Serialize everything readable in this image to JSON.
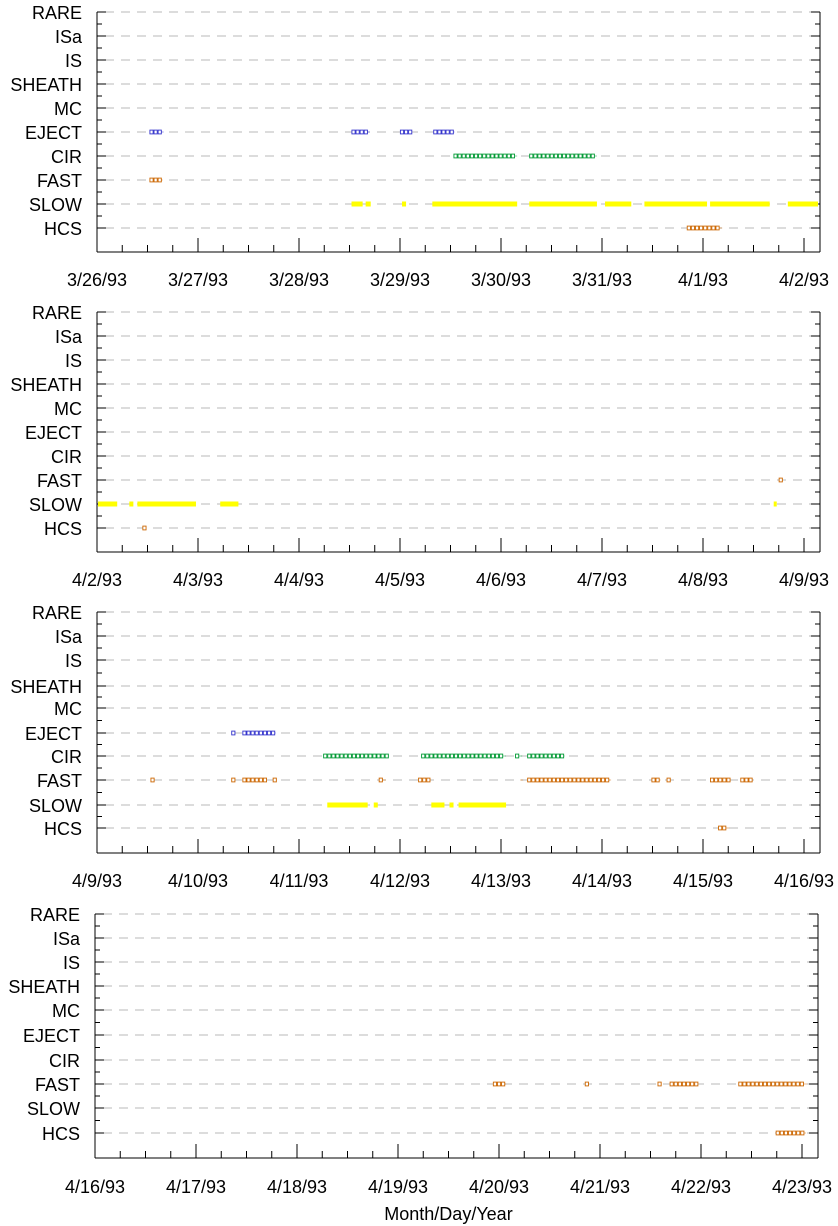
{
  "chart_data": [
    {
      "type": "scatter",
      "categories": [
        "RARE",
        "ISa",
        "IS",
        "SHEATH",
        "MC",
        "EJECT",
        "CIR",
        "FAST",
        "SLOW",
        "HCS"
      ],
      "x_ticks": [
        "3/26/93",
        "3/27/93",
        "3/28/93",
        "3/29/93",
        "3/30/93",
        "3/31/93",
        "4/1/93",
        "4/2/93"
      ],
      "xlim": [
        0,
        7
      ],
      "xlabel": "",
      "ylabel": "",
      "grid": true,
      "series": [
        {
          "category": "EJECT",
          "color": "#3333cc",
          "style": "hollow",
          "intervals": [
            [
              0.52,
              0.66
            ],
            [
              2.52,
              2.7
            ],
            [
              3.0,
              3.12
            ],
            [
              3.33,
              3.54
            ]
          ]
        },
        {
          "category": "CIR",
          "color": "#009933",
          "style": "hollow",
          "intervals": [
            [
              3.53,
              4.16
            ],
            [
              4.28,
              4.95
            ]
          ]
        },
        {
          "category": "FAST",
          "color": "#cc6600",
          "style": "hollow",
          "intervals": [
            [
              0.52,
              0.65
            ]
          ]
        },
        {
          "category": "SLOW",
          "color": "#ffff00",
          "style": "solid",
          "intervals": [
            [
              2.52,
              2.63
            ],
            [
              2.66,
              2.71
            ],
            [
              3.02,
              3.06
            ],
            [
              3.32,
              4.16
            ],
            [
              4.28,
              4.95
            ],
            [
              5.03,
              5.29
            ],
            [
              5.42,
              6.04
            ],
            [
              6.07,
              6.66
            ],
            [
              6.84,
              7.15
            ]
          ]
        },
        {
          "category": "HCS",
          "color": "#cc6600",
          "style": "hollow",
          "intervals": [
            [
              5.84,
              6.19
            ]
          ]
        }
      ]
    },
    {
      "type": "scatter",
      "categories": [
        "RARE",
        "ISa",
        "IS",
        "SHEATH",
        "MC",
        "EJECT",
        "CIR",
        "FAST",
        "SLOW",
        "HCS"
      ],
      "x_ticks": [
        "4/2/93",
        "4/3/93",
        "4/4/93",
        "4/5/93",
        "4/6/93",
        "4/7/93",
        "4/8/93",
        "4/9/93"
      ],
      "xlim": [
        0,
        7
      ],
      "xlabel": "",
      "ylabel": "",
      "grid": true,
      "series": [
        {
          "category": "FAST",
          "color": "#cc6600",
          "style": "hollow",
          "intervals": [
            [
              6.75,
              6.79
            ]
          ]
        },
        {
          "category": "SLOW",
          "color": "#ffff00",
          "style": "solid",
          "intervals": [
            [
              -0.05,
              0.2
            ],
            [
              0.32,
              0.36
            ],
            [
              0.4,
              0.98
            ],
            [
              1.22,
              1.4
            ],
            [
              6.7,
              6.73
            ]
          ]
        },
        {
          "category": "HCS",
          "color": "#cc6600",
          "style": "hollow",
          "intervals": [
            [
              0.45,
              0.49
            ]
          ]
        }
      ]
    },
    {
      "type": "scatter",
      "categories": [
        "RARE",
        "ISa",
        "IS",
        "SHEATH",
        "MC",
        "EJECT",
        "CIR",
        "FAST",
        "SLOW",
        "HCS"
      ],
      "x_ticks": [
        "4/9/93",
        "4/10/93",
        "4/11/93",
        "4/12/93",
        "4/13/93",
        "4/14/93",
        "4/15/93",
        "4/16/93"
      ],
      "xlim": [
        0,
        7
      ],
      "xlabel": "",
      "ylabel": "",
      "grid": true,
      "series": [
        {
          "category": "EJECT",
          "color": "#3333cc",
          "style": "hollow",
          "intervals": [
            [
              1.33,
              1.37
            ],
            [
              1.44,
              1.77
            ]
          ]
        },
        {
          "category": "CIR",
          "color": "#009933",
          "style": "hollow",
          "intervals": [
            [
              2.24,
              2.89
            ],
            [
              3.21,
              4.05
            ],
            [
              4.14,
              4.21
            ],
            [
              4.26,
              4.63
            ]
          ]
        },
        {
          "category": "FAST",
          "color": "#cc6600",
          "style": "hollow",
          "intervals": [
            [
              0.53,
              0.57
            ],
            [
              1.33,
              1.37
            ],
            [
              1.44,
              1.68
            ],
            [
              1.74,
              1.78
            ],
            [
              2.79,
              2.86
            ],
            [
              3.18,
              3.3
            ],
            [
              4.19,
              4.22
            ],
            [
              4.26,
              5.09
            ],
            [
              5.49,
              5.58
            ],
            [
              5.64,
              5.68
            ],
            [
              6.07,
              6.27
            ],
            [
              6.37,
              6.49
            ]
          ]
        },
        {
          "category": "SLOW",
          "color": "#ffff00",
          "style": "solid",
          "intervals": [
            [
              2.28,
              2.68
            ],
            [
              2.74,
              2.78
            ],
            [
              3.31,
              3.44
            ],
            [
              3.49,
              3.53
            ],
            [
              3.58,
              4.05
            ]
          ]
        },
        {
          "category": "HCS",
          "color": "#cc6600",
          "style": "hollow",
          "intervals": [
            [
              6.15,
              6.26
            ]
          ]
        }
      ]
    },
    {
      "type": "scatter",
      "categories": [
        "RARE",
        "ISa",
        "IS",
        "SHEATH",
        "MC",
        "EJECT",
        "CIR",
        "FAST",
        "SLOW",
        "HCS"
      ],
      "x_ticks": [
        "4/16/93",
        "4/17/93",
        "4/18/93",
        "4/19/93",
        "4/20/93",
        "4/21/93",
        "4/22/93",
        "4/23/93"
      ],
      "xlim": [
        0,
        7
      ],
      "xlabel": "Month/Day/Year",
      "ylabel": "",
      "grid": true,
      "series": [
        {
          "category": "FAST",
          "color": "#cc6600",
          "style": "hollow",
          "intervals": [
            [
              3.94,
              4.07
            ],
            [
              4.85,
              4.89
            ],
            [
              5.57,
              5.61
            ],
            [
              5.69,
              5.97
            ],
            [
              6.37,
              7.05
            ]
          ]
        },
        {
          "category": "HCS",
          "color": "#cc6600",
          "style": "hollow",
          "intervals": [
            [
              6.74,
              7.04
            ]
          ]
        }
      ]
    }
  ]
}
